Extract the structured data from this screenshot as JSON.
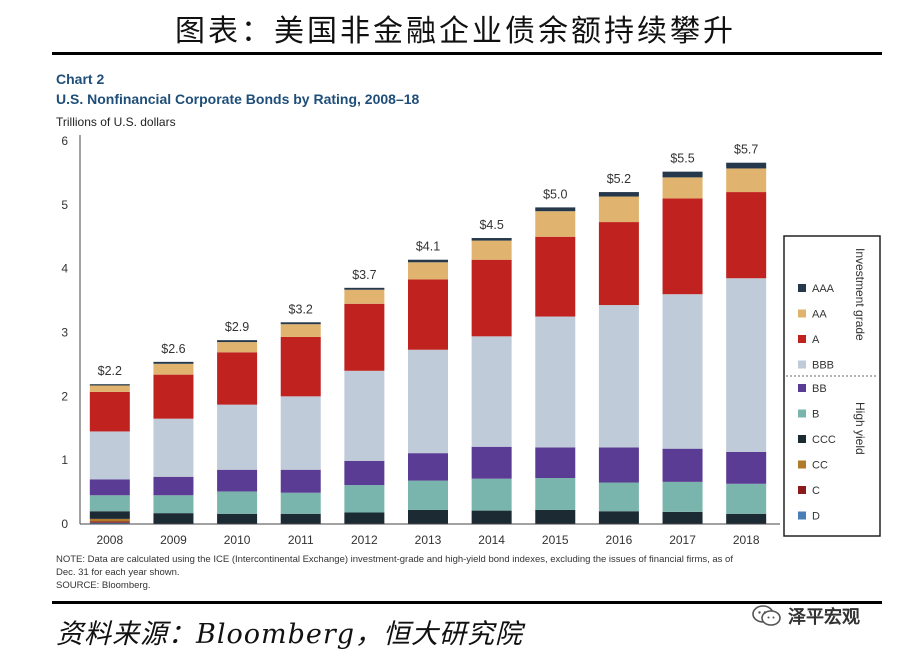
{
  "heading": "图表：美国非金融企业债余额持续攀升",
  "source": "资料来源：Bloomberg，恒大研究院",
  "watermark": "泽平宏观",
  "chart_data": {
    "type": "bar",
    "stacked": true,
    "chart_label": "Chart 2",
    "title": "U.S. Nonfinancial Corporate Bonds by Rating, 2008–18",
    "ylabel": "Trillions of U.S. dollars",
    "xlabel": "",
    "ylim": [
      0,
      6
    ],
    "yticks": [
      "0",
      "1",
      "2",
      "3",
      "4",
      "5",
      "6"
    ],
    "categories": [
      "2008",
      "2009",
      "2010",
      "2011",
      "2012",
      "2013",
      "2014",
      "2015",
      "2016",
      "2017",
      "2018"
    ],
    "totals": [
      "$2.2",
      "$2.6",
      "$2.9",
      "$3.2",
      "$3.7",
      "$4.1",
      "$4.5",
      "$5.0",
      "$5.2",
      "$5.5",
      "$5.7"
    ],
    "series": [
      {
        "name": "D",
        "color": "#4a7fb5",
        "values": [
          0.02,
          0.0,
          0.0,
          0.0,
          0.0,
          0.0,
          0.0,
          0.0,
          0.0,
          0.0,
          0.0
        ]
      },
      {
        "name": "C",
        "color": "#8b1a1a",
        "values": [
          0.02,
          0.0,
          0.0,
          0.0,
          0.0,
          0.0,
          0.0,
          0.0,
          0.0,
          0.0,
          0.0
        ]
      },
      {
        "name": "CC",
        "color": "#b07a2a",
        "values": [
          0.04,
          0.0,
          0.0,
          0.0,
          0.0,
          0.0,
          0.0,
          0.0,
          0.0,
          0.0,
          0.0
        ]
      },
      {
        "name": "CCC",
        "color": "#1c2a33",
        "values": [
          0.12,
          0.17,
          0.16,
          0.16,
          0.18,
          0.22,
          0.21,
          0.22,
          0.2,
          0.19,
          0.16
        ]
      },
      {
        "name": "B",
        "color": "#7ab5ad",
        "values": [
          0.25,
          0.28,
          0.35,
          0.33,
          0.43,
          0.46,
          0.5,
          0.5,
          0.45,
          0.47,
          0.47
        ]
      },
      {
        "name": "BB",
        "color": "#5b3c94",
        "values": [
          0.25,
          0.29,
          0.34,
          0.36,
          0.38,
          0.43,
          0.5,
          0.48,
          0.55,
          0.52,
          0.5
        ]
      },
      {
        "name": "BBB",
        "color": "#bfcbd9",
        "values": [
          0.75,
          0.91,
          1.02,
          1.15,
          1.41,
          1.62,
          1.73,
          2.05,
          2.23,
          2.42,
          2.72
        ]
      },
      {
        "name": "A",
        "color": "#c0221f",
        "values": [
          0.62,
          0.69,
          0.82,
          0.93,
          1.05,
          1.1,
          1.2,
          1.25,
          1.3,
          1.5,
          1.35
        ]
      },
      {
        "name": "AA",
        "color": "#e0b46e",
        "values": [
          0.1,
          0.17,
          0.16,
          0.2,
          0.22,
          0.27,
          0.3,
          0.4,
          0.4,
          0.33,
          0.37
        ]
      },
      {
        "name": "AAA",
        "color": "#26394c",
        "values": [
          0.02,
          0.03,
          0.03,
          0.03,
          0.03,
          0.04,
          0.04,
          0.06,
          0.07,
          0.09,
          0.09
        ]
      }
    ],
    "legend_groups": {
      "investment": {
        "label": "Investment grade",
        "items": [
          "AAA",
          "AA",
          "A",
          "BBB"
        ]
      },
      "high_yield": {
        "label": "High yield",
        "items": [
          "BB",
          "B",
          "CCC",
          "CC",
          "C",
          "D"
        ]
      }
    },
    "legend_position": "right",
    "note_line1": "NOTE: Data are calculated using the ICE (Intercontinental Exchange) investment-grade and high-yield bond indexes, excluding the issues of financial firms, as of",
    "note_line2": "Dec. 31 for each year shown.",
    "source_note": "SOURCE: Bloomberg."
  }
}
